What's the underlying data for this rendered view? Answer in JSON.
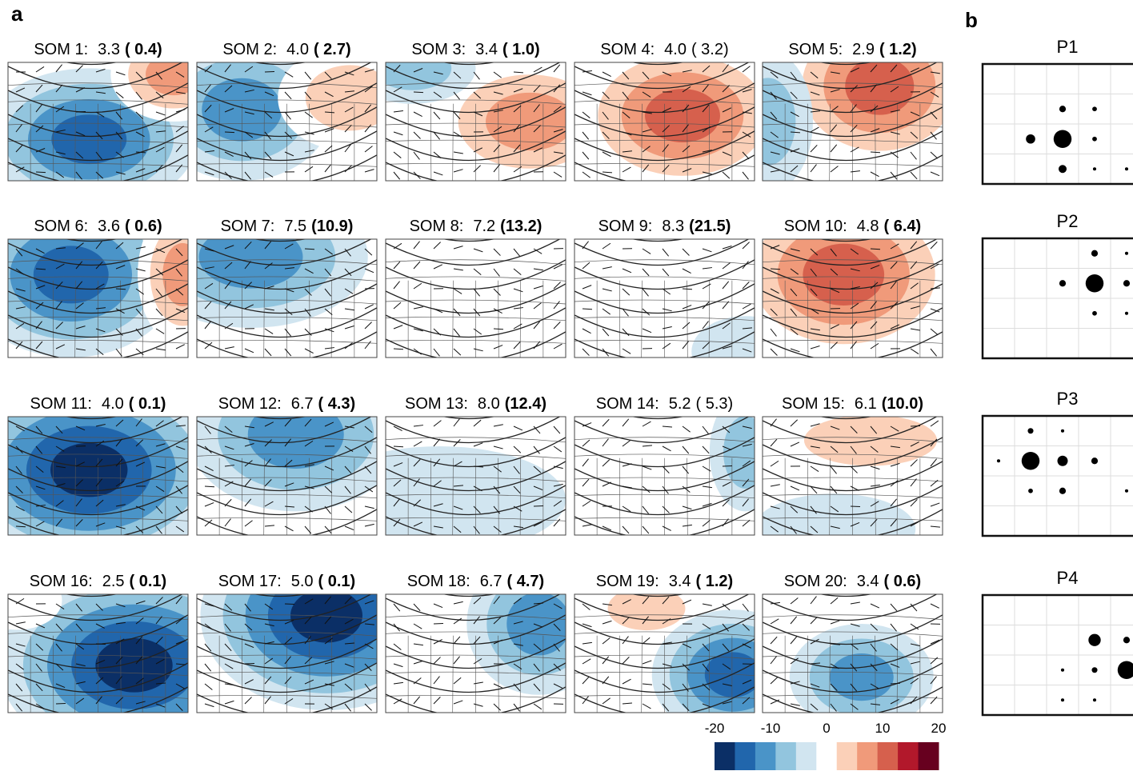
{
  "panel_a": {
    "label": "a",
    "maps": [
      {
        "label": "SOM 1:",
        "mean": "3.3",
        "freq": "( 0.4)",
        "bold": true
      },
      {
        "label": "SOM 2:",
        "mean": "4.0",
        "freq": "( 2.7)",
        "bold": true
      },
      {
        "label": "SOM 3:",
        "mean": "3.4",
        "freq": "( 1.0)",
        "bold": true
      },
      {
        "label": "SOM 4:",
        "mean": "4.0",
        "freq": "( 3.2)",
        "bold": false
      },
      {
        "label": "SOM 5:",
        "mean": "2.9",
        "freq": "( 1.2)",
        "bold": true
      },
      {
        "label": "SOM 6:",
        "mean": "3.6",
        "freq": "( 0.6)",
        "bold": true
      },
      {
        "label": "SOM 7:",
        "mean": "7.5",
        "freq": "(10.9)",
        "bold": true
      },
      {
        "label": "SOM 8:",
        "mean": "7.2",
        "freq": "(13.2)",
        "bold": true
      },
      {
        "label": "SOM 9:",
        "mean": "8.3",
        "freq": "(21.5)",
        "bold": true
      },
      {
        "label": "SOM 10:",
        "mean": "4.8",
        "freq": "( 6.4)",
        "bold": true
      },
      {
        "label": "SOM 11:",
        "mean": "4.0",
        "freq": "( 0.1)",
        "bold": true
      },
      {
        "label": "SOM 12:",
        "mean": "6.7",
        "freq": "( 4.3)",
        "bold": true
      },
      {
        "label": "SOM 13:",
        "mean": "8.0",
        "freq": "(12.4)",
        "bold": true
      },
      {
        "label": "SOM 14:",
        "mean": "5.2",
        "freq": "( 5.3)",
        "bold": false
      },
      {
        "label": "SOM 15:",
        "mean": "6.1",
        "freq": "(10.0)",
        "bold": true
      },
      {
        "label": "SOM 16:",
        "mean": "2.5",
        "freq": "( 0.1)",
        "bold": true
      },
      {
        "label": "SOM 17:",
        "mean": "5.0",
        "freq": "( 0.1)",
        "bold": true
      },
      {
        "label": "SOM 18:",
        "mean": "6.7",
        "freq": "( 4.7)",
        "bold": true
      },
      {
        "label": "SOM 19:",
        "mean": "3.4",
        "freq": "( 1.2)",
        "bold": true
      },
      {
        "label": "SOM 20:",
        "mean": "3.4",
        "freq": "( 0.6)",
        "bold": true
      }
    ],
    "colorbar": {
      "lim": [
        -20,
        20
      ],
      "ticks": [
        -20,
        -10,
        0,
        10,
        20
      ],
      "colors": [
        "#0b2f66",
        "#2166ac",
        "#4a94c8",
        "#92c5de",
        "#d1e5f0",
        "#ffffff",
        "#fbd0b8",
        "#f09a7a",
        "#d6604d",
        "#b2182b",
        "#67001f"
      ]
    }
  },
  "panel_b": {
    "label": "b",
    "panels": [
      {
        "title": "P1",
        "values": [
          [
            0,
            0,
            0,
            0,
            0
          ],
          [
            0,
            0,
            2,
            1,
            0
          ],
          [
            0,
            4,
            15,
            1,
            0
          ],
          [
            0,
            0,
            3,
            0.5,
            0.5
          ]
        ]
      },
      {
        "title": "P2",
        "values": [
          [
            0,
            0,
            0,
            2,
            0.5
          ],
          [
            0,
            0,
            2,
            15,
            2
          ],
          [
            0,
            0,
            0,
            1,
            0.5
          ],
          [
            0,
            0,
            0,
            0,
            0
          ]
        ]
      },
      {
        "title": "P3",
        "values": [
          [
            0,
            1.5,
            0.5,
            0,
            0
          ],
          [
            0.5,
            15,
            5,
            2,
            0
          ],
          [
            0,
            1,
            2,
            0,
            0.5
          ],
          [
            0,
            0,
            0,
            0,
            0
          ]
        ]
      },
      {
        "title": "P4",
        "values": [
          [
            0,
            0,
            0,
            0,
            0
          ],
          [
            0,
            0,
            0,
            7,
            2
          ],
          [
            0,
            0,
            0.5,
            1.5,
            15
          ],
          [
            0,
            0,
            0.5,
            0.5,
            0
          ]
        ]
      }
    ]
  }
}
